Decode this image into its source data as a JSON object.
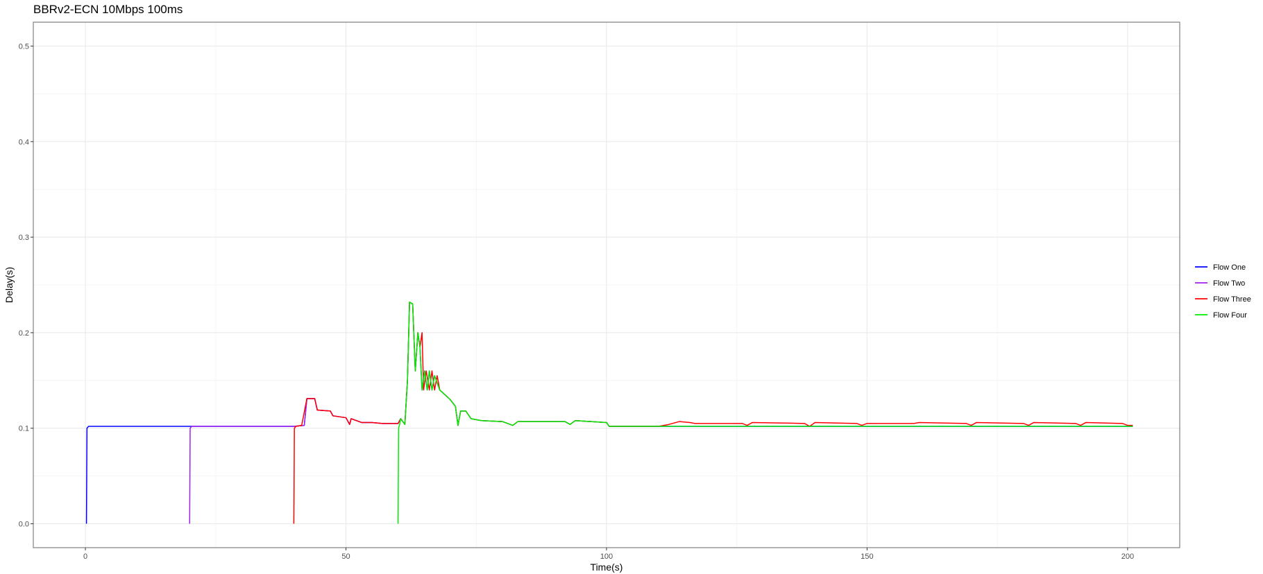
{
  "title": "BBRv2-ECN 10Mbps 100ms",
  "chart_data": {
    "type": "line",
    "title": "BBRv2-ECN 10Mbps 100ms",
    "xlabel": "Time(s)",
    "ylabel": "Delay(s)",
    "xlim": [
      -10,
      210
    ],
    "ylim": [
      -0.025,
      0.525
    ],
    "xticks": [
      0,
      50,
      100,
      150,
      200
    ],
    "yticks": [
      0.0,
      0.1,
      0.2,
      0.3,
      0.4,
      0.5
    ],
    "xtick_labels": [
      "0",
      "50",
      "100",
      "150",
      "200"
    ],
    "ytick_labels": [
      "0.0",
      "0.1",
      "0.2",
      "0.3",
      "0.4",
      "0.5"
    ],
    "grid": true,
    "legend_position": "right",
    "series": [
      {
        "name": "Flow One",
        "color": "#0000ff",
        "points": [
          [
            0.2,
            0.0
          ],
          [
            0.3,
            0.1
          ],
          [
            0.6,
            0.102
          ],
          [
            20,
            0.102
          ],
          [
            40,
            0.102
          ],
          [
            42,
            0.103
          ],
          [
            42.5,
            0.131
          ],
          [
            44,
            0.131
          ],
          [
            44.5,
            0.119
          ],
          [
            47,
            0.118
          ],
          [
            47.5,
            0.113
          ],
          [
            50,
            0.111
          ],
          [
            50.7,
            0.104
          ],
          [
            51,
            0.11
          ],
          [
            52,
            0.108
          ],
          [
            53,
            0.106
          ],
          [
            55,
            0.106
          ],
          [
            57,
            0.105
          ],
          [
            59,
            0.105
          ],
          [
            60,
            0.105
          ],
          [
            60.5,
            0.11
          ],
          [
            61.3,
            0.104
          ],
          [
            61.8,
            0.15
          ],
          [
            62.2,
            0.232
          ],
          [
            62.8,
            0.23
          ],
          [
            63.3,
            0.16
          ],
          [
            63.8,
            0.2
          ],
          [
            64.2,
            0.185
          ],
          [
            64.6,
            0.14
          ],
          [
            65.1,
            0.16
          ],
          [
            65.6,
            0.14
          ],
          [
            66,
            0.16
          ],
          [
            66.5,
            0.14
          ],
          [
            67,
            0.155
          ],
          [
            68,
            0.14
          ],
          [
            69,
            0.135
          ],
          [
            70,
            0.13
          ],
          [
            71,
            0.123
          ],
          [
            71.5,
            0.103
          ],
          [
            72,
            0.118
          ],
          [
            73,
            0.118
          ],
          [
            74,
            0.11
          ],
          [
            76,
            0.108
          ],
          [
            80,
            0.107
          ],
          [
            82,
            0.103
          ],
          [
            83,
            0.107
          ],
          [
            90,
            0.107
          ],
          [
            92,
            0.107
          ],
          [
            93,
            0.104
          ],
          [
            94,
            0.108
          ],
          [
            100,
            0.106
          ],
          [
            100.5,
            0.102
          ],
          [
            110,
            0.102
          ],
          [
            130,
            0.102
          ],
          [
            150,
            0.102
          ],
          [
            170,
            0.102
          ],
          [
            190,
            0.102
          ],
          [
            201,
            0.102
          ]
        ]
      },
      {
        "name": "Flow Two",
        "color": "#a020f0",
        "points": [
          [
            20,
            0.0
          ],
          [
            20.1,
            0.1
          ],
          [
            20.4,
            0.102
          ],
          [
            30,
            0.102
          ],
          [
            40,
            0.102
          ],
          [
            42,
            0.103
          ],
          [
            42.5,
            0.131
          ],
          [
            44,
            0.131
          ],
          [
            44.5,
            0.119
          ],
          [
            47,
            0.118
          ],
          [
            47.5,
            0.113
          ],
          [
            50,
            0.111
          ],
          [
            50.7,
            0.104
          ],
          [
            51,
            0.11
          ],
          [
            52,
            0.108
          ],
          [
            53,
            0.106
          ],
          [
            55,
            0.106
          ],
          [
            57,
            0.105
          ],
          [
            60,
            0.105
          ]
        ]
      },
      {
        "name": "Flow Three",
        "color": "#ff0000",
        "points": [
          [
            40,
            0.0
          ],
          [
            40.1,
            0.1
          ],
          [
            40.4,
            0.102
          ],
          [
            41.5,
            0.103
          ],
          [
            42.5,
            0.131
          ],
          [
            44,
            0.131
          ],
          [
            44.5,
            0.119
          ],
          [
            47,
            0.118
          ],
          [
            47.5,
            0.113
          ],
          [
            50,
            0.111
          ],
          [
            50.7,
            0.104
          ],
          [
            51,
            0.11
          ],
          [
            52,
            0.108
          ],
          [
            53,
            0.106
          ],
          [
            55,
            0.106
          ],
          [
            57,
            0.105
          ],
          [
            60,
            0.105
          ],
          [
            60.5,
            0.11
          ],
          [
            61.3,
            0.104
          ],
          [
            61.8,
            0.15
          ],
          [
            62.2,
            0.232
          ],
          [
            62.8,
            0.23
          ],
          [
            63.3,
            0.16
          ],
          [
            63.8,
            0.2
          ],
          [
            64.2,
            0.185
          ],
          [
            64.6,
            0.2
          ],
          [
            64.9,
            0.14
          ],
          [
            65.4,
            0.16
          ],
          [
            66,
            0.14
          ],
          [
            66.5,
            0.16
          ],
          [
            67,
            0.14
          ],
          [
            67.5,
            0.155
          ],
          [
            68,
            0.14
          ],
          [
            69,
            0.135
          ],
          [
            70,
            0.13
          ],
          [
            71,
            0.123
          ],
          [
            71.5,
            0.103
          ],
          [
            72,
            0.118
          ],
          [
            73,
            0.118
          ],
          [
            74,
            0.11
          ],
          [
            76,
            0.108
          ],
          [
            80,
            0.107
          ],
          [
            82,
            0.103
          ],
          [
            83,
            0.107
          ],
          [
            90,
            0.107
          ],
          [
            92,
            0.107
          ],
          [
            93,
            0.104
          ],
          [
            94,
            0.108
          ],
          [
            100,
            0.106
          ],
          [
            100.5,
            0.102
          ],
          [
            110,
            0.102
          ],
          [
            112,
            0.104
          ],
          [
            114,
            0.107
          ],
          [
            116,
            0.106
          ],
          [
            117,
            0.105
          ],
          [
            126,
            0.105
          ],
          [
            127,
            0.103
          ],
          [
            128,
            0.106
          ],
          [
            138,
            0.105
          ],
          [
            139,
            0.102
          ],
          [
            140,
            0.106
          ],
          [
            148,
            0.105
          ],
          [
            149,
            0.103
          ],
          [
            150,
            0.105
          ],
          [
            159,
            0.105
          ],
          [
            160,
            0.106
          ],
          [
            169,
            0.105
          ],
          [
            170,
            0.103
          ],
          [
            171,
            0.106
          ],
          [
            180,
            0.105
          ],
          [
            181,
            0.103
          ],
          [
            182,
            0.106
          ],
          [
            190,
            0.105
          ],
          [
            191,
            0.103
          ],
          [
            192,
            0.106
          ],
          [
            199,
            0.105
          ],
          [
            200,
            0.103
          ],
          [
            201,
            0.103
          ]
        ]
      },
      {
        "name": "Flow Four",
        "color": "#00ee00",
        "points": [
          [
            60,
            0.0
          ],
          [
            60.1,
            0.1
          ],
          [
            60.3,
            0.104
          ],
          [
            60.5,
            0.11
          ],
          [
            61.3,
            0.104
          ],
          [
            61.8,
            0.15
          ],
          [
            62.2,
            0.232
          ],
          [
            62.8,
            0.23
          ],
          [
            63.3,
            0.16
          ],
          [
            63.8,
            0.2
          ],
          [
            64.2,
            0.185
          ],
          [
            64.6,
            0.14
          ],
          [
            65.1,
            0.16
          ],
          [
            65.6,
            0.14
          ],
          [
            66,
            0.16
          ],
          [
            66.5,
            0.14
          ],
          [
            67,
            0.155
          ],
          [
            68,
            0.14
          ],
          [
            69,
            0.135
          ],
          [
            70,
            0.13
          ],
          [
            71,
            0.123
          ],
          [
            71.5,
            0.103
          ],
          [
            72,
            0.118
          ],
          [
            73,
            0.118
          ],
          [
            74,
            0.11
          ],
          [
            76,
            0.108
          ],
          [
            80,
            0.107
          ],
          [
            82,
            0.103
          ],
          [
            83,
            0.107
          ],
          [
            90,
            0.107
          ],
          [
            92,
            0.107
          ],
          [
            93,
            0.104
          ],
          [
            94,
            0.108
          ],
          [
            100,
            0.106
          ],
          [
            100.5,
            0.102
          ],
          [
            110,
            0.102
          ],
          [
            130,
            0.102
          ],
          [
            150,
            0.102
          ],
          [
            170,
            0.102
          ],
          [
            190,
            0.102
          ],
          [
            201,
            0.102
          ]
        ]
      }
    ]
  }
}
